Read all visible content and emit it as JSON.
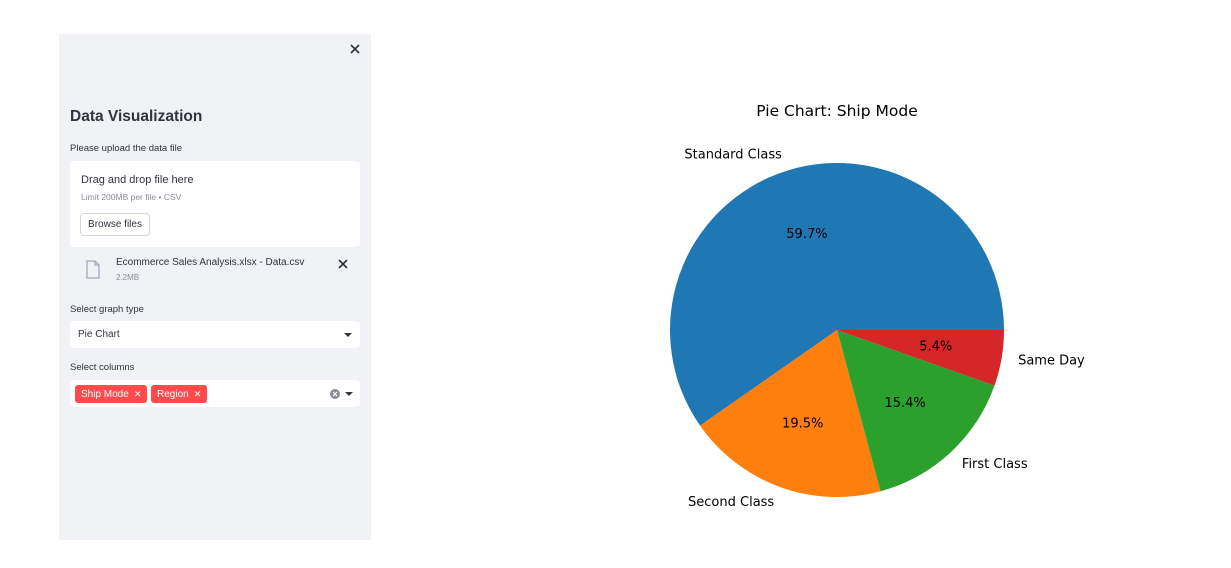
{
  "sidebar": {
    "title": "Data Visualization",
    "upload_label": "Please upload the data file",
    "uploader": {
      "drag_text": "Drag and drop file here",
      "limit_text": "Limit 200MB per file • CSV",
      "browse_label": "Browse files"
    },
    "file": {
      "name": "Ecommerce Sales Analysis.xlsx - Data.csv",
      "size": "2.2MB"
    },
    "graph_type": {
      "label": "Select graph type",
      "value": "Pie Chart"
    },
    "columns": {
      "label": "Select columns",
      "tags": [
        "Ship Mode",
        "Region"
      ]
    }
  },
  "chart_data": {
    "type": "pie",
    "title": "Pie Chart: Ship Mode",
    "categories": [
      "Standard Class",
      "Second Class",
      "First Class",
      "Same Day"
    ],
    "values": [
      59.7,
      19.5,
      15.4,
      5.4
    ],
    "labels": [
      "59.7%",
      "19.5%",
      "15.4%",
      "5.4%"
    ],
    "colors": [
      "#1f77b4",
      "#ff7f0e",
      "#2ca02c",
      "#d62728"
    ]
  },
  "colors": {
    "sidebar_bg": "#f0f2f6",
    "tag_accent": "#ff4b4b"
  }
}
